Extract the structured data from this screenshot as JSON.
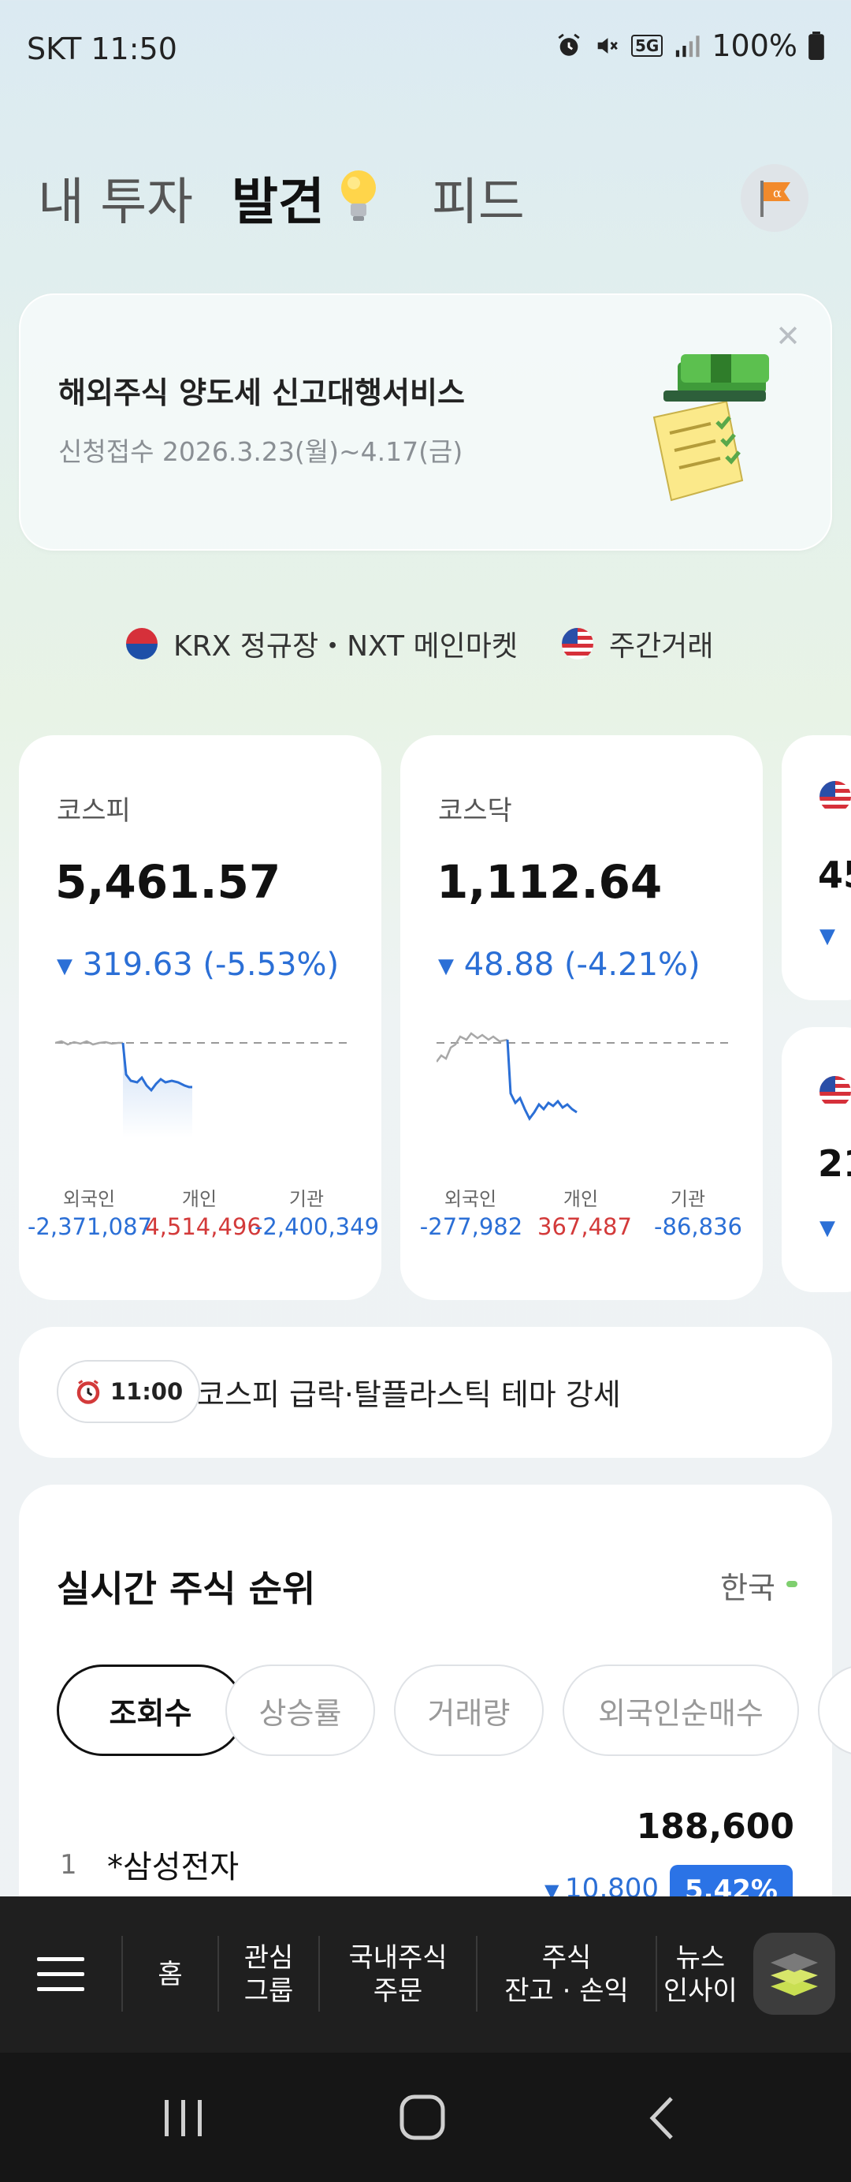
{
  "status_bar": {
    "carrier_time": "SKT 11:50",
    "battery": "100%",
    "network": "5G"
  },
  "tabs": [
    {
      "label": "내 투자"
    },
    {
      "label": "발견"
    },
    {
      "label": "피드"
    }
  ],
  "banner": {
    "title": "해외주식 양도세 신고대행서비스",
    "subtitle": "신청접수 2026.3.23(월)~4.17(금)"
  },
  "market": {
    "krx_label": "KRX 정규장・NXT 메인마켓",
    "us_label": "주간거래"
  },
  "indices": [
    {
      "name": "코스피",
      "value": "5,461.57",
      "change": "319.63 (-5.53%)",
      "flows": [
        {
          "label": "외국인",
          "value": "-2,371,087",
          "color": "blue"
        },
        {
          "label": "개인",
          "value": "4,514,496",
          "color": "red"
        },
        {
          "label": "기관",
          "value": "-2,400,349",
          "color": "blue"
        }
      ]
    },
    {
      "name": "코스닥",
      "value": "1,112.64",
      "change": "48.88 (-4.21%)",
      "flows": [
        {
          "label": "외국인",
          "value": "-277,982",
          "color": "blue"
        },
        {
          "label": "개인",
          "value": "367,487",
          "color": "red"
        },
        {
          "label": "기관",
          "value": "-86,836",
          "color": "blue"
        }
      ]
    }
  ],
  "partial_cards": [
    {
      "value_fragment": "45"
    },
    {
      "value_fragment": "21"
    }
  ],
  "news": {
    "time": "11:00",
    "headline": "코스피 급락·탈플라스틱 테마 강세"
  },
  "ranking": {
    "title": "실시간 주식 순위",
    "region": "한국",
    "chips": [
      "조회수",
      "상승률",
      "거래량",
      "외국인순매수"
    ],
    "items": [
      {
        "rank": "1",
        "name": "*삼성전자",
        "price": "188,600",
        "delta": "10,800",
        "rate": "5.42%"
      }
    ]
  },
  "bottom_nav": {
    "items": [
      "홈",
      "관심\n그룹",
      "국내주식\n주문",
      "주식\n잔고 · 손익",
      "뉴스\n인사이"
    ]
  },
  "colors": {
    "down": "#2b6fd6",
    "up": "#d33a3a",
    "badge": "#2b73e6"
  }
}
